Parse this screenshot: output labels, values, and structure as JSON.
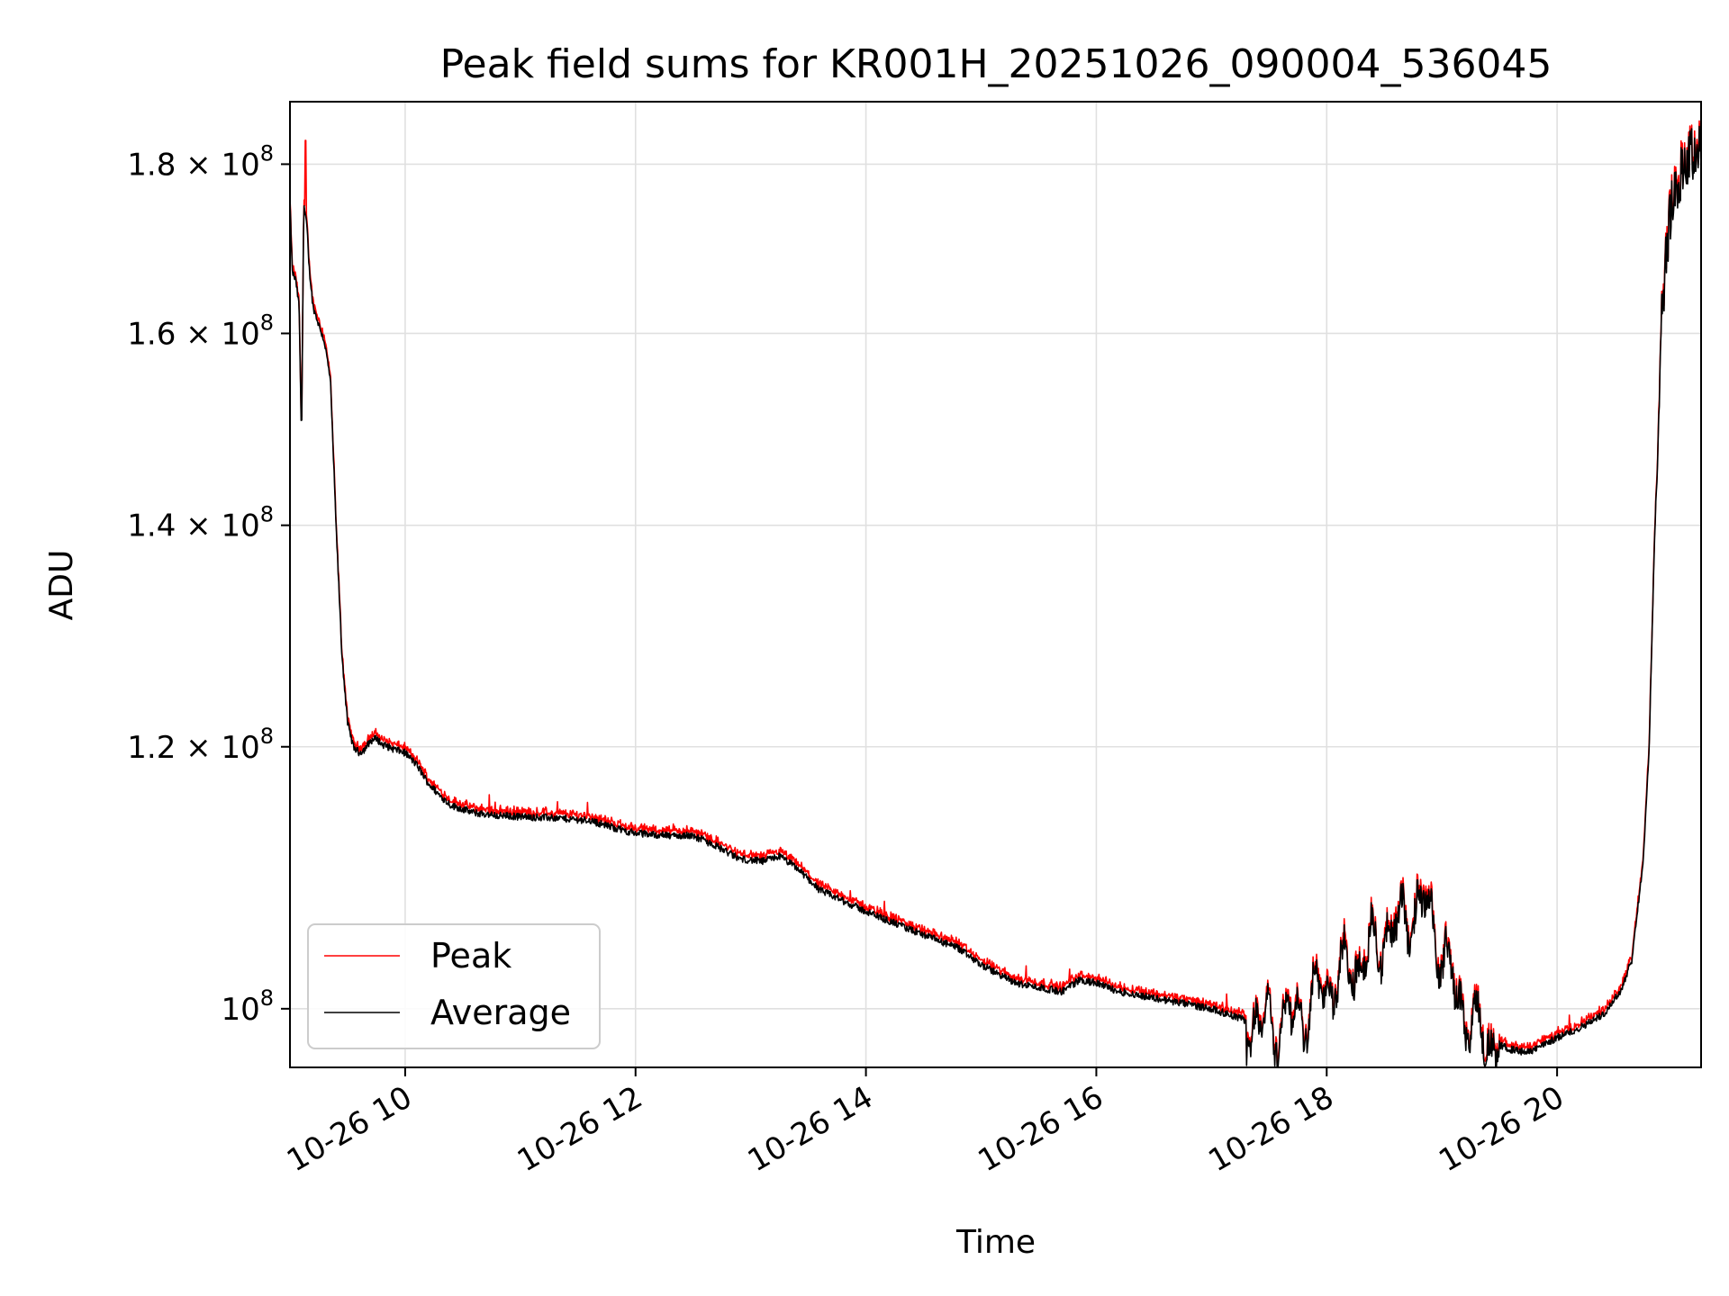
{
  "chart_data": {
    "type": "line",
    "title": "Peak field sums for KR001H_20251026_090004_536045",
    "xlabel": "Time",
    "ylabel": "ADU",
    "x_unit": "hours (10-26)",
    "xlim": [
      9.0,
      21.25
    ],
    "ylim": [
      96000000,
      188000000
    ],
    "yscale": "log",
    "grid": true,
    "legend_position": "lower-left",
    "x_ticks": [
      {
        "value": 10,
        "label": "10-26 10"
      },
      {
        "value": 12,
        "label": "10-26 12"
      },
      {
        "value": 14,
        "label": "10-26 14"
      },
      {
        "value": 16,
        "label": "10-26 16"
      },
      {
        "value": 18,
        "label": "10-26 18"
      },
      {
        "value": 20,
        "label": "10-26 20"
      }
    ],
    "y_ticks": [
      {
        "value": 100000000,
        "mantissa": "",
        "exp": "8"
      },
      {
        "value": 120000000,
        "mantissa": "1.2",
        "exp": "8"
      },
      {
        "value": 140000000,
        "mantissa": "1.4",
        "exp": "8"
      },
      {
        "value": 160000000,
        "mantissa": "1.6",
        "exp": "8"
      },
      {
        "value": 180000000,
        "mantissa": "1.8",
        "exp": "8"
      }
    ],
    "y_tick_base": "10",
    "y_tick_times": "×",
    "series": [
      {
        "name": "Peak",
        "color": "#ff0000"
      },
      {
        "name": "Average",
        "color": "#000000"
      }
    ],
    "base_curve_hours": [
      9.0,
      9.02,
      9.05,
      9.08,
      9.1,
      9.12,
      9.15,
      9.16,
      9.17,
      9.2,
      9.25,
      9.3,
      9.35,
      9.4,
      9.45,
      9.5,
      9.55,
      9.6,
      9.65,
      9.7,
      9.75,
      9.8,
      9.9,
      10.0,
      10.1,
      10.2,
      10.3,
      10.4,
      10.6,
      10.8,
      11.0,
      11.3,
      11.6,
      11.9,
      12.0,
      12.3,
      12.5,
      12.7,
      12.9,
      13.1,
      13.25,
      13.4,
      13.6,
      13.8,
      14.0,
      14.4,
      14.8,
      15.0,
      15.3,
      15.7,
      15.85,
      16.0,
      16.2,
      16.6,
      17.0,
      17.3,
      17.5,
      17.7,
      17.9,
      18.0,
      18.2,
      18.35,
      18.5,
      18.7,
      18.85,
      19.0,
      19.2,
      19.4,
      19.6,
      19.75,
      20.0,
      20.2,
      20.4,
      20.55,
      20.65,
      20.75,
      20.8,
      20.85,
      20.9,
      20.95,
      21.0,
      21.1,
      21.2,
      21.25
    ],
    "base_curve_values": [
      175000000,
      167000000,
      166000000,
      163000000,
      148000000,
      175000000,
      172000000,
      169000000,
      167000000,
      163000000,
      161000000,
      159000000,
      155000000,
      140000000,
      128000000,
      122000000,
      120000000,
      119500000,
      119800000,
      120500000,
      120700000,
      120200000,
      119800000,
      119500000,
      118500000,
      117000000,
      116000000,
      115200000,
      114600000,
      114400000,
      114300000,
      114200000,
      114000000,
      113200000,
      113000000,
      112800000,
      112800000,
      112000000,
      111000000,
      110800000,
      111200000,
      110300000,
      108600000,
      107800000,
      107000000,
      105600000,
      104300000,
      103100000,
      101800000,
      101200000,
      102000000,
      101800000,
      101200000,
      100600000,
      100000000,
      99200000,
      99000000,
      99300000,
      100500000,
      101800000,
      102500000,
      103800000,
      105300000,
      106500000,
      107500000,
      104000000,
      99500000,
      97800000,
      97200000,
      97000000,
      98000000,
      98700000,
      99600000,
      101200000,
      103500000,
      111000000,
      120000000,
      140000000,
      160000000,
      170000000,
      175000000,
      180000000,
      181500000,
      183000000
    ],
    "legend_entries": [
      "Peak",
      "Average"
    ]
  }
}
